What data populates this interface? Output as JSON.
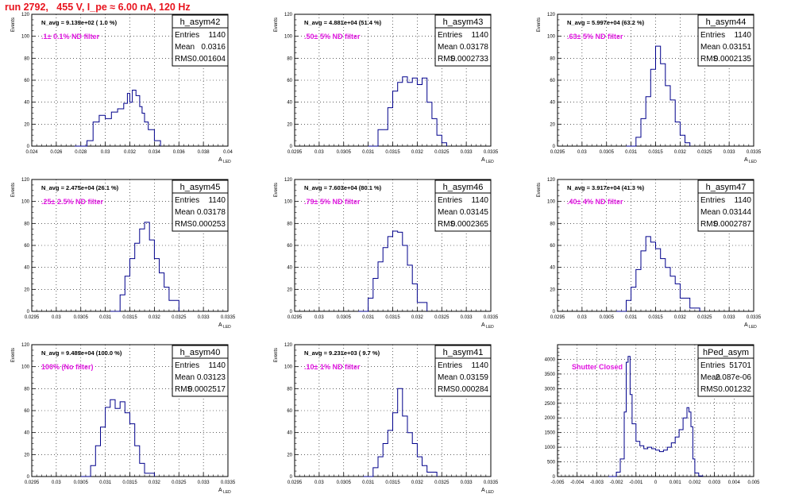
{
  "run_title": "run 2792,   455 V, I_pe ≈ 6.00 nA, 120 Hz",
  "chart_data": [
    {
      "type": "histogram",
      "title": "h_asym42",
      "stats": {
        "labels": [
          "Entries",
          "Mean",
          "RMS"
        ],
        "values": [
          "1140",
          "0.0316",
          "0.001604"
        ]
      },
      "n_avg": "N_avg = 9.139e+02 ( 1.0 %)",
      "note": ".1± 0.1% ND filter",
      "ylabel": "Events",
      "xlabel": "A",
      "xlim": [
        0.024,
        0.04
      ],
      "ylim": [
        0,
        120
      ],
      "xticks": [
        "0.024",
        "0.026",
        "0.028",
        "0.03",
        "0.032",
        "0.034",
        "0.036",
        "0.038",
        "0.04"
      ],
      "yticks": [
        "0",
        "20",
        "40",
        "60",
        "80",
        "100",
        "120"
      ],
      "x": [
        0.0275,
        0.0285,
        0.029,
        0.0295,
        0.03,
        0.0305,
        0.031,
        0.0315,
        0.0318,
        0.032,
        0.0322,
        0.0325,
        0.0328,
        0.033,
        0.0332,
        0.0335,
        0.034,
        0.0345
      ],
      "y": [
        0,
        5,
        22,
        28,
        25,
        31,
        34,
        39,
        48,
        40,
        51,
        46,
        36,
        30,
        22,
        15,
        5,
        0
      ]
    },
    {
      "type": "histogram",
      "title": "h_asym43",
      "stats": {
        "labels": [
          "Entries",
          "Mean",
          "RMS"
        ],
        "values": [
          "1140",
          "0.03178",
          "0.0002733"
        ]
      },
      "n_avg": "N_avg = 4.881e+04 (51.4 %)",
      "note": ".50± 5% ND filter",
      "ylabel": "Events",
      "xlabel": "A",
      "xlim": [
        0.0295,
        0.0335
      ],
      "ylim": [
        0,
        120
      ],
      "xticks": [
        "0.0295",
        "0.03",
        "0.0305",
        "0.031",
        "0.0315",
        "0.032",
        "0.0325",
        "0.033",
        "0.0335"
      ],
      "yticks": [
        "0",
        "20",
        "40",
        "60",
        "80",
        "100",
        "120"
      ],
      "x": [
        0.031,
        0.0312,
        0.0314,
        0.0315,
        0.0316,
        0.0317,
        0.0318,
        0.0319,
        0.032,
        0.0321,
        0.0322,
        0.0323,
        0.0324,
        0.0325,
        0.0326
      ],
      "y": [
        0,
        15,
        35,
        50,
        58,
        63,
        58,
        62,
        56,
        62,
        40,
        25,
        10,
        3,
        0
      ]
    },
    {
      "type": "histogram",
      "title": "h_asym44",
      "stats": {
        "labels": [
          "Entries",
          "Mean",
          "RMS"
        ],
        "values": [
          "1140",
          "0.03151",
          "0.0002135"
        ]
      },
      "n_avg": "N_avg = 5.997e+04 (63.2 %)",
      "note": ".63± 5% ND filter",
      "ylabel": "Events",
      "xlabel": "A",
      "xlim": [
        0.0295,
        0.0335
      ],
      "ylim": [
        0,
        120
      ],
      "xticks": [
        "0.0295",
        "0.03",
        "0.0305",
        "0.031",
        "0.0315",
        "0.032",
        "0.0325",
        "0.033",
        "0.0335"
      ],
      "yticks": [
        "0",
        "20",
        "40",
        "60",
        "80",
        "100",
        "120"
      ],
      "x": [
        0.0309,
        0.0311,
        0.0312,
        0.0313,
        0.0314,
        0.0315,
        0.0316,
        0.0317,
        0.0318,
        0.0319,
        0.032,
        0.0321,
        0.0322
      ],
      "y": [
        0,
        8,
        25,
        45,
        70,
        91,
        75,
        55,
        42,
        22,
        10,
        3,
        0
      ]
    },
    {
      "type": "histogram",
      "title": "h_asym45",
      "stats": {
        "labels": [
          "Entries",
          "Mean",
          "RMS"
        ],
        "values": [
          "1140",
          "0.03178",
          "0.000253"
        ]
      },
      "n_avg": "N_avg = 2.475e+04 (26.1 %)",
      "note": ".25± 2.5% ND filter",
      "ylabel": "Events",
      "xlabel": "A",
      "xlim": [
        0.0295,
        0.0335
      ],
      "ylim": [
        0,
        120
      ],
      "xticks": [
        "0.0295",
        "0.03",
        "0.0305",
        "0.031",
        "0.0315",
        "0.032",
        "0.0325",
        "0.033",
        "0.0335"
      ],
      "yticks": [
        "0",
        "20",
        "40",
        "60",
        "80",
        "100",
        "120"
      ],
      "x": [
        0.0311,
        0.0313,
        0.0314,
        0.0315,
        0.0316,
        0.0317,
        0.0318,
        0.0319,
        0.032,
        0.0321,
        0.0322,
        0.0323,
        0.0325
      ],
      "y": [
        0,
        15,
        32,
        48,
        62,
        75,
        81,
        65,
        48,
        35,
        22,
        10,
        0
      ]
    },
    {
      "type": "histogram",
      "title": "h_asym46",
      "stats": {
        "labels": [
          "Entries",
          "Mean",
          "RMS"
        ],
        "values": [
          "1140",
          "0.03145",
          "0.0002365"
        ]
      },
      "n_avg": "N_avg = 7.603e+04 (80.1 %)",
      "note": ".79± 5% ND filter",
      "ylabel": "Events",
      "xlabel": "A",
      "xlim": [
        0.0295,
        0.0335
      ],
      "ylim": [
        0,
        120
      ],
      "xticks": [
        "0.0295",
        "0.03",
        "0.0305",
        "0.031",
        "0.0315",
        "0.032",
        "0.0325",
        "0.033",
        "0.0335"
      ],
      "yticks": [
        "0",
        "20",
        "40",
        "60",
        "80",
        "100",
        "120"
      ],
      "x": [
        0.0308,
        0.031,
        0.0311,
        0.0312,
        0.0313,
        0.0314,
        0.0315,
        0.0316,
        0.0317,
        0.0318,
        0.0319,
        0.032,
        0.0322
      ],
      "y": [
        0,
        12,
        30,
        45,
        58,
        68,
        73,
        72,
        60,
        42,
        25,
        8,
        0
      ]
    },
    {
      "type": "histogram",
      "title": "h_asym47",
      "stats": {
        "labels": [
          "Entries",
          "Mean",
          "RMS"
        ],
        "values": [
          "1140",
          "0.03144",
          "0.0002787"
        ]
      },
      "n_avg": "N_avg = 3.917e+04 (41.3 %)",
      "note": ".40± 4% ND filter",
      "ylabel": "Events",
      "xlabel": "A",
      "xlim": [
        0.0295,
        0.0335
      ],
      "ylim": [
        0,
        120
      ],
      "xticks": [
        "0.0295",
        "0.03",
        "0.0305",
        "0.031",
        "0.0315",
        "0.032",
        "0.0325",
        "0.033",
        "0.0335"
      ],
      "yticks": [
        "0",
        "20",
        "40",
        "60",
        "80",
        "100",
        "120"
      ],
      "x": [
        0.0307,
        0.0309,
        0.031,
        0.0311,
        0.0312,
        0.0313,
        0.0314,
        0.0315,
        0.0316,
        0.0317,
        0.0318,
        0.0319,
        0.032,
        0.0322,
        0.0324
      ],
      "y": [
        0,
        10,
        22,
        38,
        55,
        68,
        63,
        57,
        48,
        40,
        32,
        25,
        12,
        3,
        0
      ]
    },
    {
      "type": "histogram",
      "title": "h_asym40",
      "stats": {
        "labels": [
          "Entries",
          "Mean",
          "RMS"
        ],
        "values": [
          "1140",
          "0.03123",
          "0.0002517"
        ]
      },
      "n_avg": "N_avg = 9.489e+04 (100.0 %)",
      "note": "100% (No filter)",
      "ylabel": "Events",
      "xlabel": "A",
      "xlim": [
        0.0295,
        0.0335
      ],
      "ylim": [
        0,
        120
      ],
      "xticks": [
        "0.0295",
        "0.03",
        "0.0305",
        "0.031",
        "0.0315",
        "0.032",
        "0.0325",
        "0.033",
        "0.0335"
      ],
      "yticks": [
        "0",
        "20",
        "40",
        "60",
        "80",
        "100",
        "120"
      ],
      "x": [
        0.0305,
        0.0307,
        0.0308,
        0.0309,
        0.031,
        0.0311,
        0.0312,
        0.0313,
        0.0314,
        0.0315,
        0.0316,
        0.0317,
        0.0318,
        0.032
      ],
      "y": [
        0,
        10,
        28,
        45,
        63,
        70,
        62,
        68,
        58,
        48,
        28,
        12,
        3,
        0
      ]
    },
    {
      "type": "histogram",
      "title": "h_asym41",
      "stats": {
        "labels": [
          "Entries",
          "Mean",
          "RMS"
        ],
        "values": [
          "1140",
          "0.03159",
          "0.000284"
        ]
      },
      "n_avg": "N_avg = 9.231e+03 ( 9.7 %)",
      "note": ".10± 1% ND filter",
      "ylabel": "Events",
      "xlabel": "A",
      "xlim": [
        0.0295,
        0.0335
      ],
      "ylim": [
        0,
        120
      ],
      "xticks": [
        "0.0295",
        "0.03",
        "0.0305",
        "0.031",
        "0.0315",
        "0.032",
        "0.0325",
        "0.033",
        "0.0335"
      ],
      "yticks": [
        "0",
        "20",
        "40",
        "60",
        "80",
        "100",
        "120"
      ],
      "x": [
        0.0309,
        0.0311,
        0.0312,
        0.0313,
        0.0314,
        0.0315,
        0.0316,
        0.0317,
        0.0318,
        0.0319,
        0.032,
        0.0321,
        0.0322,
        0.0324
      ],
      "y": [
        0,
        8,
        18,
        30,
        42,
        58,
        80,
        55,
        40,
        30,
        18,
        10,
        4,
        0
      ]
    },
    {
      "type": "histogram",
      "title": "hPed_asym",
      "stats": {
        "labels": [
          "Entries",
          "Mean",
          "RMS"
        ],
        "values": [
          "51701",
          "2.087e-06",
          "0.001232"
        ]
      },
      "n_avg": "",
      "note": "Shutter Closed",
      "ylabel": "",
      "xlabel": "",
      "xlim": [
        -0.005,
        0.005
      ],
      "ylim": [
        0,
        4500
      ],
      "xticks": [
        "-0.005",
        "-0.004",
        "-0.003",
        "-0.002",
        "-0.001",
        "0",
        "0.001",
        "0.002",
        "0.003",
        "0.004",
        "0.005"
      ],
      "yticks": [
        "0",
        "500",
        "1000",
        "1500",
        "2000",
        "2500",
        "3000",
        "3500",
        "4000"
      ],
      "x": [
        -0.0024,
        -0.002,
        -0.0018,
        -0.0016,
        -0.0015,
        -0.0014,
        -0.0013,
        -0.0012,
        -0.001,
        -0.0008,
        -0.0006,
        -0.0004,
        -0.0002,
        0,
        0.0002,
        0.0004,
        0.0006,
        0.0008,
        0.001,
        0.0012,
        0.0014,
        0.0016,
        0.0017,
        0.0018,
        0.0019,
        0.002,
        0.0022,
        0.0024
      ],
      "y": [
        0,
        150,
        600,
        2200,
        3900,
        4100,
        2800,
        1800,
        1200,
        1050,
        950,
        1000,
        950,
        900,
        850,
        900,
        1000,
        1150,
        1350,
        1600,
        2000,
        2350,
        2200,
        1700,
        600,
        120,
        20,
        0
      ]
    }
  ]
}
